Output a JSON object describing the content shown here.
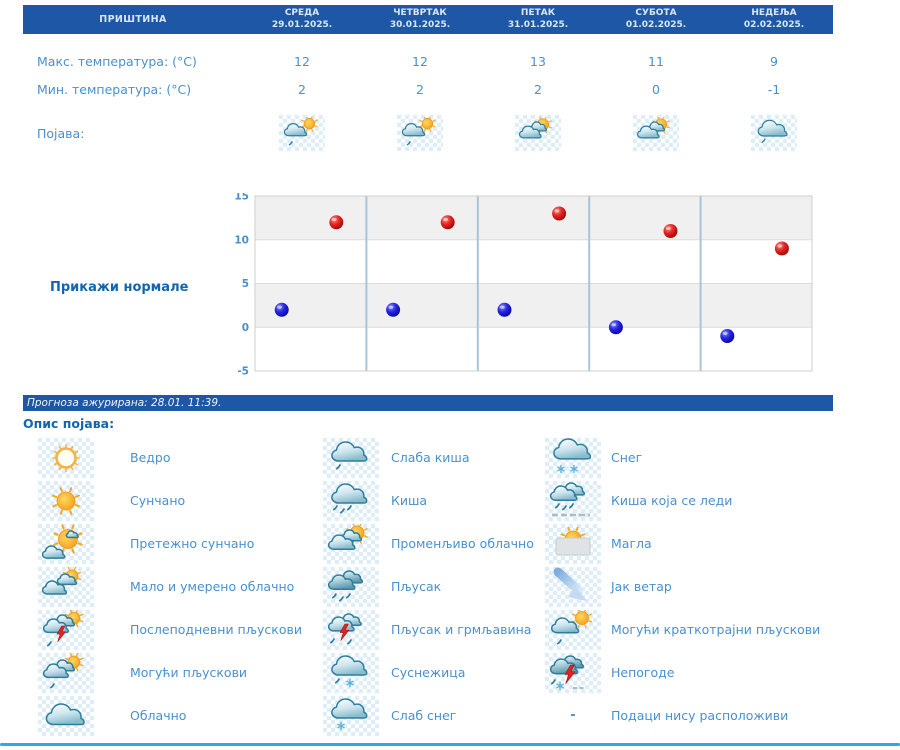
{
  "location": "ПРИШТИНА",
  "table": {
    "days": [
      {
        "name": "СРЕДА",
        "date": "29.01.2025."
      },
      {
        "name": "ЧЕТВРТАК",
        "date": "30.01.2025."
      },
      {
        "name": "ПЕТАК",
        "date": "31.01.2025."
      },
      {
        "name": "СУБОТА",
        "date": "01.02.2025."
      },
      {
        "name": "НЕДЕЉА",
        "date": "02.02.2025."
      }
    ],
    "max_label": "Макс. температура: (°C)",
    "min_label": "Мин. температура: (°C)",
    "appearance_label": "Појава:",
    "max_temps": [
      "12",
      "12",
      "13",
      "11",
      "9"
    ],
    "min_temps": [
      "2",
      "2",
      "2",
      "0",
      "-1"
    ],
    "appearance_icons": [
      "partly-sunny-rain-icon",
      "partly-sunny-rain-icon",
      "sun-clouds-icon",
      "sun-clouds-icon",
      "cloud-light-rain-icon"
    ]
  },
  "show_normals_label": "Прикажи нормале",
  "chart_data": {
    "type": "scatter",
    "categories": [
      "СРЕДА 29.01.",
      "ЧЕТВРТАК 30.01.",
      "ПЕТАК 31.01.",
      "СУБОТА 01.02.",
      "НЕДЕЉА 02.02."
    ],
    "series": [
      {
        "name": "Макс. температура (°C)",
        "color": "#cc1111",
        "values": [
          12,
          12,
          13,
          11,
          9
        ]
      },
      {
        "name": "Мин. температура (°C)",
        "color": "#1111cc",
        "values": [
          2,
          2,
          2,
          0,
          -1
        ]
      }
    ],
    "title": "",
    "xlabel": "",
    "ylabel": "",
    "ylim": [
      -5,
      15
    ],
    "yticks": [
      15,
      10,
      5,
      0,
      -5
    ],
    "grid": true,
    "legend_position": "none"
  },
  "updated_text": "Прогноза ажурирана:  28.01. 11:39.",
  "legend": {
    "title": "Опис појава:",
    "columns": [
      {
        "items": [
          {
            "icon": "sun-outline-icon",
            "label": "Ведро"
          },
          {
            "icon": "sun-icon",
            "label": "Сунчано"
          },
          {
            "icon": "mostly-sunny-icon",
            "label": "Претежно сунчано"
          },
          {
            "icon": "partly-cloudy-icon",
            "label": "Мало и умерено облачно"
          },
          {
            "icon": "afternoon-showers-icon",
            "label": "Послеподневни пљускови"
          },
          {
            "icon": "possible-showers-icon",
            "label": "Могући пљускови"
          },
          {
            "icon": "cloud-icon",
            "label": "Облачно"
          }
        ]
      },
      {
        "items": [
          {
            "icon": "cloud-light-rain-icon",
            "label": "Слаба киша"
          },
          {
            "icon": "cloud-rain-icon",
            "label": "Киша"
          },
          {
            "icon": "sun-clouds-icon",
            "label": "Променљиво облачно"
          },
          {
            "icon": "shower-icon",
            "label": "Пљусак"
          },
          {
            "icon": "thunder-shower-icon",
            "label": "Пљусак и грмљавина"
          },
          {
            "icon": "sleet-icon",
            "label": "Суснежица"
          },
          {
            "icon": "light-snow-icon",
            "label": "Слаб снег"
          }
        ]
      },
      {
        "items": [
          {
            "icon": "snow-icon",
            "label": "Снег"
          },
          {
            "icon": "freezing-rain-icon",
            "label": "Киша која се леди"
          },
          {
            "icon": "fog-icon",
            "label": "Магла"
          },
          {
            "icon": "strong-wind-icon",
            "label": "Јак ветар"
          },
          {
            "icon": "brief-showers-icon",
            "label": "Могући краткотрајни пљускови"
          },
          {
            "icon": "storm-icon",
            "label": "Непогоде"
          },
          {
            "icon": "no-data-icon",
            "label": "Подаци нису расположиви"
          }
        ]
      }
    ]
  },
  "colors": {
    "header_bg": "#1d57a5",
    "header_text": "#d8e7f8",
    "body_text": "#4a90ce",
    "heading_text": "#1266b1",
    "max_dot": "#cc1111",
    "min_dot": "#1111cc",
    "chart_band": "#f0f0f0",
    "chart_separator": "#a9c3d9",
    "bottom_line": "#29abe2"
  }
}
